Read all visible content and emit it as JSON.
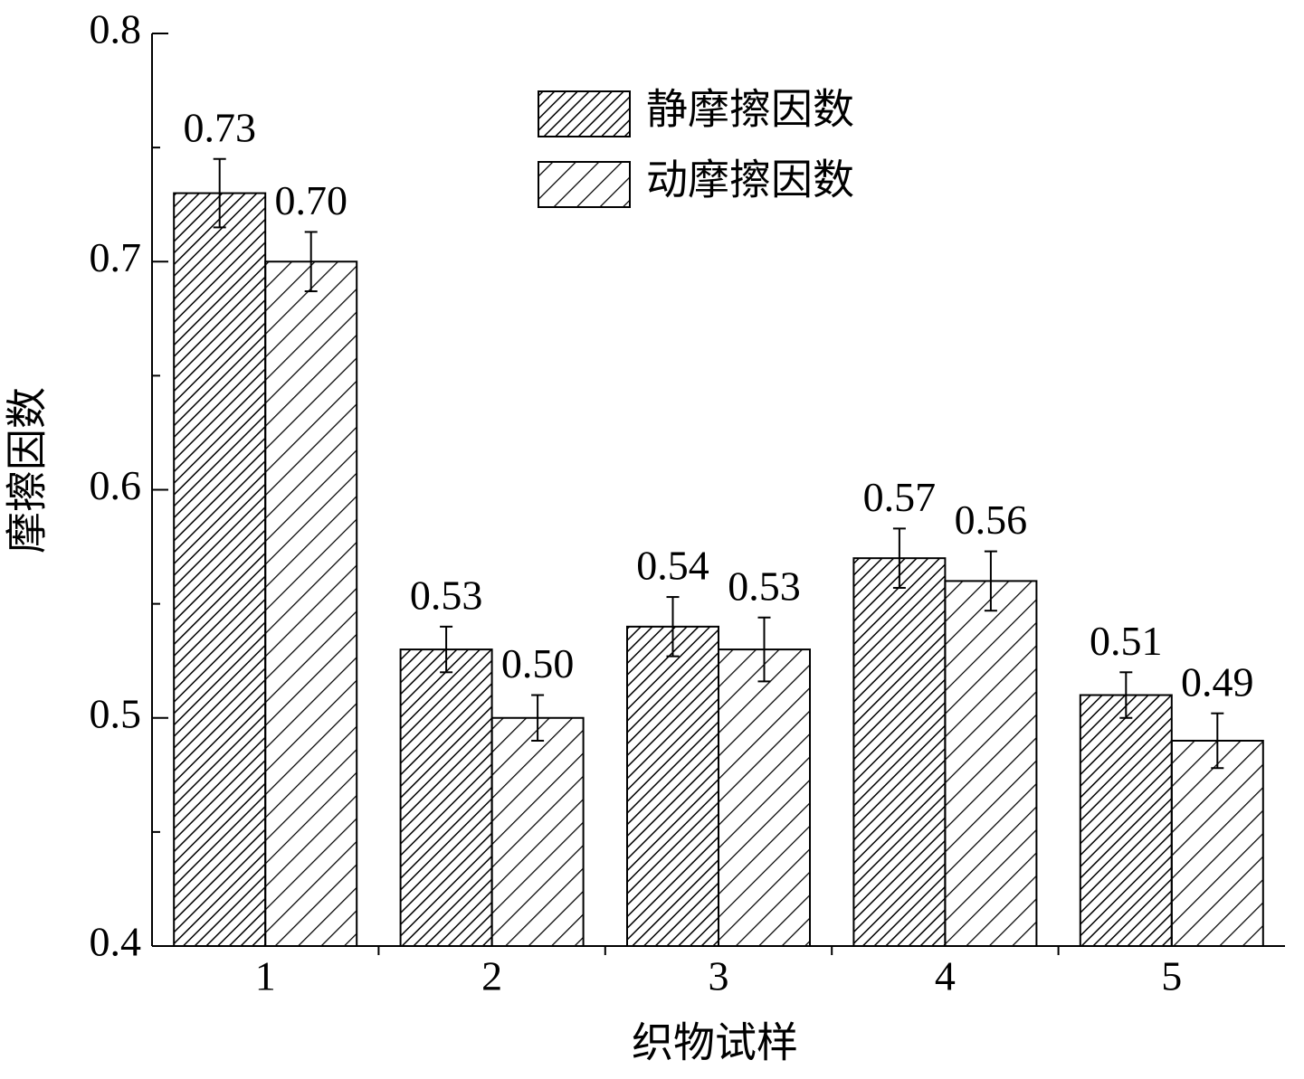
{
  "chart_data": {
    "type": "bar",
    "x_label": "织物试样",
    "y_label": "摩擦因数",
    "categories": [
      "1",
      "2",
      "3",
      "4",
      "5"
    ],
    "series": [
      {
        "name": "静摩擦因数",
        "color": "#000000",
        "values": [
          0.73,
          0.53,
          0.54,
          0.57,
          0.51
        ],
        "value_labels": [
          "0.73",
          "0.53",
          "0.54",
          "0.57",
          "0.51"
        ],
        "errors": [
          0.015,
          0.01,
          0.013,
          0.013,
          0.01
        ]
      },
      {
        "name": "动摩擦因数",
        "color": "#000000",
        "values": [
          0.7,
          0.5,
          0.53,
          0.56,
          0.49
        ],
        "value_labels": [
          "0.70",
          "0.50",
          "0.53",
          "0.56",
          "0.49"
        ],
        "errors": [
          0.013,
          0.01,
          0.014,
          0.013,
          0.012
        ]
      }
    ],
    "ylim": [
      0.4,
      0.8
    ],
    "yticks": [
      0.4,
      0.5,
      0.6,
      0.7,
      0.8
    ],
    "grid": false,
    "legend": "top"
  }
}
